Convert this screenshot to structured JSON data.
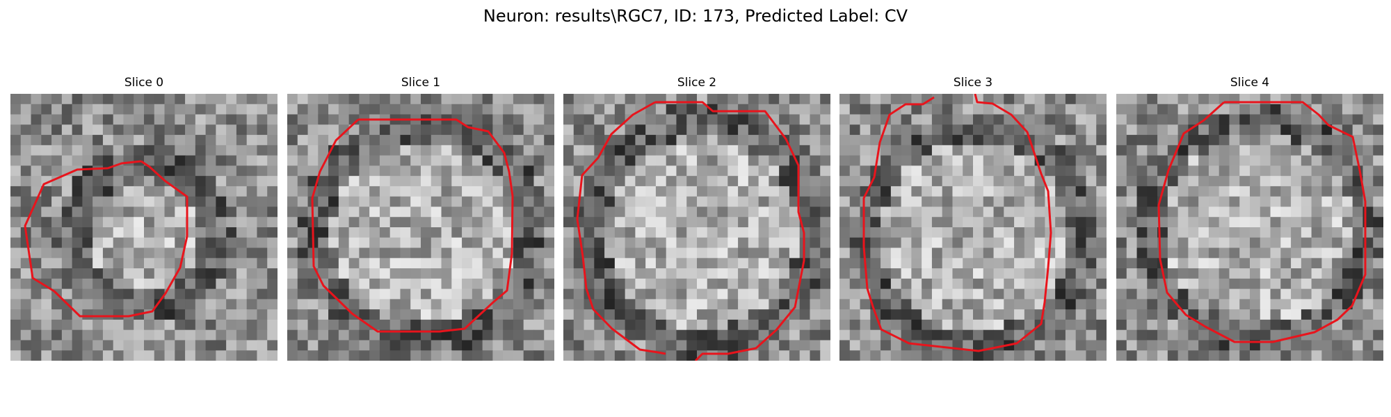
{
  "figure": {
    "title": "Neuron: results\\RGC7, ID: 173, Predicted Label: CV"
  },
  "slices": [
    {
      "title": "Slice 0"
    },
    {
      "title": "Slice 1"
    },
    {
      "title": "Slice 2"
    },
    {
      "title": "Slice 3"
    },
    {
      "title": "Slice 4"
    }
  ],
  "colors": {
    "contour": "#e8141c",
    "background": "#ffffff"
  }
}
